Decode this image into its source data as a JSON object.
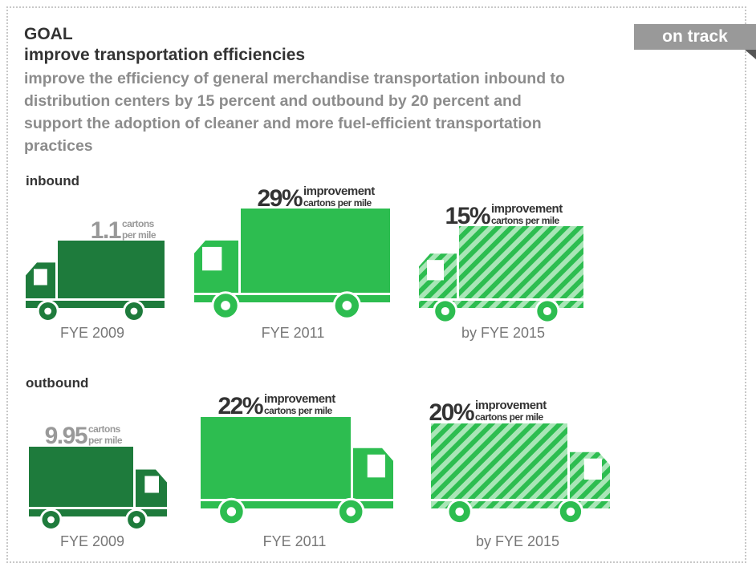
{
  "header": {
    "goal": "GOAL",
    "title": "improve transportation efficiencies",
    "description": "improve the efficiency of general merchandise transportation inbound to distribution centers by 15 percent and outbound by 20 percent and support the adoption of cleaner and more fuel-efficient transportation practices",
    "status": "on track"
  },
  "sections": [
    {
      "label": "inbound",
      "trucks": [
        {
          "value": "1.1",
          "unit": "cartons",
          "per": "per mile",
          "period": "FYE 2009"
        },
        {
          "value": "29%",
          "unit": "improvement",
          "per": "cartons per mile",
          "period": "FYE 2011"
        },
        {
          "value": "15%",
          "unit": "improvement",
          "per": "cartons per mile",
          "period": "by FYE 2015"
        }
      ]
    },
    {
      "label": "outbound",
      "trucks": [
        {
          "value": "9.95",
          "unit": "cartons",
          "per": "per mile",
          "period": "FYE 2009"
        },
        {
          "value": "22%",
          "unit": "improvement",
          "per": "cartons per mile",
          "period": "FYE 2011"
        },
        {
          "value": "20%",
          "unit": "improvement",
          "per": "cartons per mile",
          "period": "by FYE 2015"
        }
      ]
    }
  ]
}
